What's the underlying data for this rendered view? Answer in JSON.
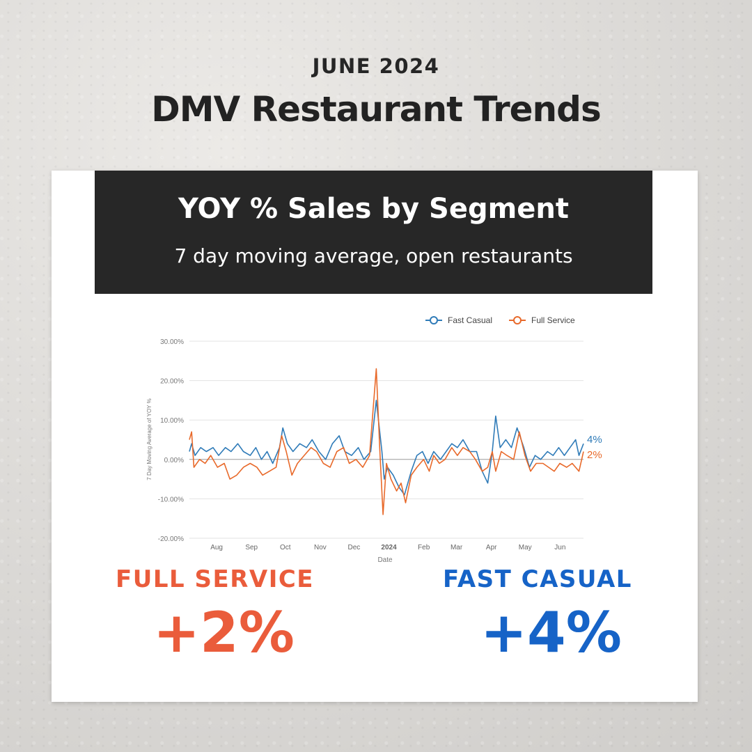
{
  "header": {
    "kicker": "JUNE 2024",
    "title": "DMV Restaurant Trends"
  },
  "panel": {
    "title": "YOY % Sales by Segment",
    "subtitle": "7 day moving average, open restaurants"
  },
  "stats": {
    "full_service": {
      "label": "FULL SERVICE",
      "value": "+2%",
      "color": "#ea5c3b"
    },
    "fast_casual": {
      "label": "FAST CASUAL",
      "value": "+4%",
      "color": "#1663c7"
    }
  },
  "chart_data": {
    "type": "line",
    "xlabel": "Date",
    "ylabel": "7 Day Moving Average of YOY %",
    "ylim": [
      -20,
      30
    ],
    "yticks": [
      "30.00%",
      "20.00%",
      "10.00%",
      "0.00%",
      "-10.00%",
      "-20.00%"
    ],
    "x_range": [
      "2023-07-14",
      "2024-06-28"
    ],
    "xticks": [
      {
        "label": "Aug",
        "date": "2023-08-01"
      },
      {
        "label": "Sep",
        "date": "2023-09-01"
      },
      {
        "label": "Oct",
        "date": "2023-10-01"
      },
      {
        "label": "Nov",
        "date": "2023-11-01"
      },
      {
        "label": "Dec",
        "date": "2023-12-01"
      },
      {
        "label": "2024",
        "date": "2024-01-01"
      },
      {
        "label": "Feb",
        "date": "2024-02-01"
      },
      {
        "label": "Mar",
        "date": "2024-03-01"
      },
      {
        "label": "Apr",
        "date": "2024-04-01"
      },
      {
        "label": "May",
        "date": "2024-05-01"
      },
      {
        "label": "Jun",
        "date": "2024-06-01"
      }
    ],
    "legend": "top-right",
    "grid": true,
    "series": [
      {
        "name": "Fast Casual",
        "color": "#2f7bb8",
        "end_label": "4%",
        "points": [
          [
            "2023-07-14",
            2
          ],
          [
            "2023-07-16",
            4
          ],
          [
            "2023-07-19",
            1
          ],
          [
            "2023-07-24",
            3
          ],
          [
            "2023-07-29",
            2
          ],
          [
            "2023-08-04",
            3
          ],
          [
            "2023-08-09",
            1
          ],
          [
            "2023-08-15",
            3
          ],
          [
            "2023-08-20",
            2
          ],
          [
            "2023-08-26",
            4
          ],
          [
            "2023-08-31",
            2
          ],
          [
            "2023-09-06",
            1
          ],
          [
            "2023-09-11",
            3
          ],
          [
            "2023-09-16",
            0
          ],
          [
            "2023-09-21",
            2
          ],
          [
            "2023-09-26",
            -1
          ],
          [
            "2023-10-02",
            3
          ],
          [
            "2023-10-05",
            8
          ],
          [
            "2023-10-09",
            4
          ],
          [
            "2023-10-14",
            2
          ],
          [
            "2023-10-20",
            4
          ],
          [
            "2023-10-26",
            3
          ],
          [
            "2023-10-31",
            5
          ],
          [
            "2023-11-06",
            2
          ],
          [
            "2023-11-12",
            0
          ],
          [
            "2023-11-18",
            4
          ],
          [
            "2023-11-24",
            6
          ],
          [
            "2023-11-29",
            2
          ],
          [
            "2023-12-05",
            1
          ],
          [
            "2023-12-11",
            3
          ],
          [
            "2023-12-16",
            0
          ],
          [
            "2023-12-22",
            2
          ],
          [
            "2023-12-27",
            15
          ],
          [
            "2024-01-01",
            2
          ],
          [
            "2024-01-03",
            -5
          ],
          [
            "2024-01-06",
            -2
          ],
          [
            "2024-01-11",
            -4
          ],
          [
            "2024-01-16",
            -7
          ],
          [
            "2024-01-21",
            -9
          ],
          [
            "2024-01-27",
            -3
          ],
          [
            "2024-02-01",
            1
          ],
          [
            "2024-02-06",
            2
          ],
          [
            "2024-02-11",
            -1
          ],
          [
            "2024-02-16",
            2
          ],
          [
            "2024-02-22",
            0
          ],
          [
            "2024-02-27",
            2
          ],
          [
            "2024-03-03",
            4
          ],
          [
            "2024-03-08",
            3
          ],
          [
            "2024-03-13",
            5
          ],
          [
            "2024-03-19",
            2
          ],
          [
            "2024-03-25",
            2
          ],
          [
            "2024-03-30",
            -3
          ],
          [
            "2024-04-04",
            -6
          ],
          [
            "2024-04-08",
            2
          ],
          [
            "2024-04-11",
            11
          ],
          [
            "2024-04-15",
            3
          ],
          [
            "2024-04-20",
            5
          ],
          [
            "2024-04-25",
            3
          ],
          [
            "2024-04-30",
            8
          ],
          [
            "2024-05-06",
            3
          ],
          [
            "2024-05-11",
            -2
          ],
          [
            "2024-05-16",
            1
          ],
          [
            "2024-05-21",
            0
          ],
          [
            "2024-05-27",
            2
          ],
          [
            "2024-06-01",
            1
          ],
          [
            "2024-06-06",
            3
          ],
          [
            "2024-06-11",
            1
          ],
          [
            "2024-06-16",
            3
          ],
          [
            "2024-06-21",
            5
          ],
          [
            "2024-06-24",
            1
          ],
          [
            "2024-06-28",
            4
          ]
        ]
      },
      {
        "name": "Full Service",
        "color": "#e8692a",
        "end_label": "2%",
        "points": [
          [
            "2023-07-14",
            5
          ],
          [
            "2023-07-16",
            7
          ],
          [
            "2023-07-18",
            -2
          ],
          [
            "2023-07-23",
            0
          ],
          [
            "2023-07-28",
            -1
          ],
          [
            "2023-08-02",
            1
          ],
          [
            "2023-08-08",
            -2
          ],
          [
            "2023-08-14",
            -1
          ],
          [
            "2023-08-19",
            -5
          ],
          [
            "2023-08-25",
            -4
          ],
          [
            "2023-08-31",
            -2
          ],
          [
            "2023-09-06",
            -1
          ],
          [
            "2023-09-12",
            -2
          ],
          [
            "2023-09-17",
            -4
          ],
          [
            "2023-09-23",
            -3
          ],
          [
            "2023-09-29",
            -2
          ],
          [
            "2023-10-04",
            6
          ],
          [
            "2023-10-08",
            2
          ],
          [
            "2023-10-13",
            -4
          ],
          [
            "2023-10-18",
            -1
          ],
          [
            "2023-10-24",
            1
          ],
          [
            "2023-10-30",
            3
          ],
          [
            "2023-11-04",
            2
          ],
          [
            "2023-11-10",
            -1
          ],
          [
            "2023-11-16",
            -2
          ],
          [
            "2023-11-22",
            2
          ],
          [
            "2023-11-28",
            3
          ],
          [
            "2023-12-03",
            -1
          ],
          [
            "2023-12-09",
            0
          ],
          [
            "2023-12-15",
            -2
          ],
          [
            "2023-12-21",
            1
          ],
          [
            "2023-12-27",
            23
          ],
          [
            "2023-12-30",
            3
          ],
          [
            "2024-01-02",
            -14
          ],
          [
            "2024-01-05",
            -1
          ],
          [
            "2024-01-09",
            -5
          ],
          [
            "2024-01-14",
            -8
          ],
          [
            "2024-01-18",
            -6
          ],
          [
            "2024-01-22",
            -11
          ],
          [
            "2024-01-27",
            -4
          ],
          [
            "2024-02-01",
            -2
          ],
          [
            "2024-02-07",
            0
          ],
          [
            "2024-02-12",
            -3
          ],
          [
            "2024-02-16",
            1
          ],
          [
            "2024-02-21",
            -1
          ],
          [
            "2024-02-26",
            0
          ],
          [
            "2024-03-03",
            3
          ],
          [
            "2024-03-08",
            1
          ],
          [
            "2024-03-13",
            3
          ],
          [
            "2024-03-19",
            2
          ],
          [
            "2024-03-24",
            0
          ],
          [
            "2024-03-30",
            -3
          ],
          [
            "2024-04-04",
            -2
          ],
          [
            "2024-04-08",
            2
          ],
          [
            "2024-04-11",
            -3
          ],
          [
            "2024-04-16",
            2
          ],
          [
            "2024-04-21",
            1
          ],
          [
            "2024-04-27",
            0
          ],
          [
            "2024-05-02",
            7
          ],
          [
            "2024-05-07",
            1
          ],
          [
            "2024-05-12",
            -3
          ],
          [
            "2024-05-17",
            -1
          ],
          [
            "2024-05-23",
            -1
          ],
          [
            "2024-05-28",
            -2
          ],
          [
            "2024-06-02",
            -3
          ],
          [
            "2024-06-07",
            -1
          ],
          [
            "2024-06-13",
            -2
          ],
          [
            "2024-06-18",
            -1
          ],
          [
            "2024-06-24",
            -3
          ],
          [
            "2024-06-28",
            2
          ]
        ]
      }
    ]
  }
}
